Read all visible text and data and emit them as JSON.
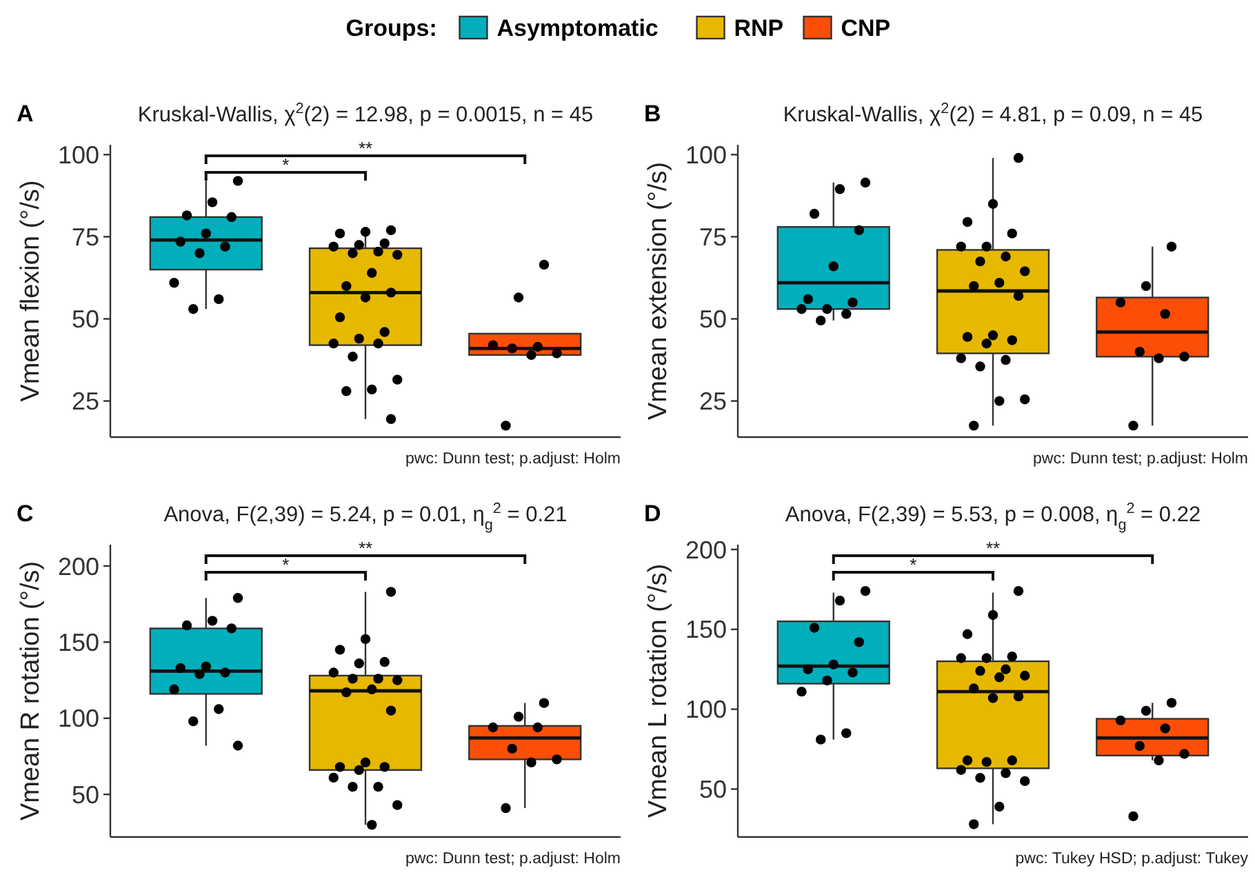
{
  "chart_data": [
    {
      "type": "box",
      "title": "Kruskal-Wallis, χ$^{2}$(2) = 12.98, p = 0.0015, n = 45",
      "ylabel": "Vmean flexion (°/s)",
      "legend": "top",
      "legend_title": "Groups:",
      "categories": [
        null,
        null,
        null
      ],
      "tick_labels": "y",
      "ylim": [
        14,
        103
      ],
      "yticks": [
        25,
        50,
        75,
        100
      ],
      "series": [
        {
          "type": "box",
          "name": "Asymptomatic",
          "color": "#00afbb",
          "boxes": [
            {
              "low": 53,
              "q1": 65,
              "median": 74,
              "q3": 81,
              "high": 92
            },
            null,
            null
          ]
        },
        {
          "type": "box",
          "name": "RNP",
          "color": "#e7b800",
          "boxes": [
            null,
            {
              "low": 19.5,
              "q1": 42,
              "median": 58,
              "q3": 71.5,
              "high": 77
            },
            null
          ]
        },
        {
          "type": "box",
          "name": "CNP",
          "color": "#fc4e07",
          "boxes": [
            null,
            null,
            {
              "low": 39,
              "q1": 39,
              "median": 41,
              "q3": 45.5,
              "high": 45.5
            }
          ]
        },
        {
          "type": "scatter",
          "color": "#000000",
          "values": [
            92,
            77,
            66.5
          ]
        },
        {
          "type": "scatter",
          "color": "#000000",
          "values": [
            85.5,
            76.5,
            56.5
          ]
        },
        {
          "type": "scatter",
          "color": "#000000",
          "values": [
            81.5,
            76,
            42
          ]
        },
        {
          "type": "scatter",
          "color": "#000000",
          "values": [
            81,
            73,
            41.5
          ]
        },
        {
          "type": "scatter",
          "color": "#000000",
          "values": [
            76,
            72.5,
            41
          ]
        },
        {
          "type": "scatter",
          "color": "#000000",
          "values": [
            73.5,
            72,
            39.5
          ]
        },
        {
          "type": "scatter",
          "color": "#000000",
          "values": [
            72,
            70.5,
            39
          ]
        },
        {
          "type": "scatter",
          "color": "#000000",
          "values": [
            70,
            70,
            17.5
          ]
        },
        {
          "type": "scatter",
          "color": "#000000",
          "values": [
            61,
            69.5,
            null
          ]
        },
        {
          "type": "scatter",
          "color": "#000000",
          "values": [
            56,
            64,
            null
          ]
        },
        {
          "type": "scatter",
          "color": "#000000",
          "values": [
            53,
            60,
            null
          ]
        },
        {
          "type": "scatter",
          "color": "#000000",
          "values": [
            null,
            58,
            null
          ]
        },
        {
          "type": "scatter",
          "color": "#000000",
          "values": [
            null,
            56.5,
            null
          ]
        },
        {
          "type": "scatter",
          "color": "#000000",
          "values": [
            null,
            50.5,
            null
          ]
        },
        {
          "type": "scatter",
          "color": "#000000",
          "values": [
            null,
            46,
            null
          ]
        },
        {
          "type": "scatter",
          "color": "#000000",
          "values": [
            null,
            44,
            null
          ]
        },
        {
          "type": "scatter",
          "color": "#000000",
          "values": [
            null,
            42.5,
            null
          ]
        },
        {
          "type": "scatter",
          "color": "#000000",
          "values": [
            null,
            42.5,
            null
          ]
        },
        {
          "type": "scatter",
          "color": "#000000",
          "values": [
            null,
            38.5,
            null
          ]
        },
        {
          "type": "scatter",
          "color": "#000000",
          "values": [
            null,
            31.5,
            null
          ]
        },
        {
          "type": "scatter",
          "color": "#000000",
          "values": [
            null,
            28.5,
            null
          ]
        },
        {
          "type": "scatter",
          "color": "#000000",
          "values": [
            null,
            28,
            null
          ]
        },
        {
          "type": "scatter",
          "color": "#000000",
          "values": [
            null,
            19.5,
            null
          ]
        }
      ],
      "annotations": [
        "A",
        "*",
        "**",
        "pwc: Dunn test; p.adjust: Holm"
      ]
    },
    {
      "type": "box",
      "title": "Kruskal-Wallis, χ$^{2}$(2) = 4.81, p = 0.09, n = 45",
      "ylabel": "Vmean extension (°/s)",
      "categories": [
        null,
        null,
        null
      ],
      "tick_labels": "y",
      "ylim": [
        14,
        103
      ],
      "yticks": [
        25,
        50,
        75,
        100
      ],
      "series": [
        {
          "type": "box",
          "color": "#00afbb",
          "boxes": [
            {
              "low": 49.5,
              "q1": 53,
              "median": 61,
              "q3": 78,
              "high": 91.5
            },
            null,
            null
          ]
        },
        {
          "type": "box",
          "color": "#e7b800",
          "boxes": [
            null,
            {
              "low": 17.5,
              "q1": 39.5,
              "median": 58.5,
              "q3": 71,
              "high": 99
            },
            null
          ]
        },
        {
          "type": "box",
          "color": "#fc4e07",
          "boxes": [
            null,
            null,
            {
              "low": 17.5,
              "q1": 38.5,
              "median": 46,
              "q3": 56.5,
              "high": 72
            }
          ]
        },
        {
          "type": "scatter",
          "color": "#000000",
          "values": [
            91.5,
            99,
            72
          ]
        },
        {
          "type": "scatter",
          "color": "#000000",
          "values": [
            89.5,
            85,
            60
          ]
        },
        {
          "type": "scatter",
          "color": "#000000",
          "values": [
            82,
            79.5,
            55
          ]
        },
        {
          "type": "scatter",
          "color": "#000000",
          "values": [
            77,
            76,
            51.5
          ]
        },
        {
          "type": "scatter",
          "color": "#000000",
          "values": [
            66,
            72,
            40
          ]
        },
        {
          "type": "scatter",
          "color": "#000000",
          "values": [
            56,
            72,
            38.5
          ]
        },
        {
          "type": "scatter",
          "color": "#000000",
          "values": [
            55,
            69,
            38
          ]
        },
        {
          "type": "scatter",
          "color": "#000000",
          "values": [
            53,
            67.5,
            17.5
          ]
        },
        {
          "type": "scatter",
          "color": "#000000",
          "values": [
            53,
            64.5,
            null
          ]
        },
        {
          "type": "scatter",
          "color": "#000000",
          "values": [
            51.5,
            61,
            null
          ]
        },
        {
          "type": "scatter",
          "color": "#000000",
          "values": [
            49.5,
            60,
            null
          ]
        },
        {
          "type": "scatter",
          "color": "#000000",
          "values": [
            null,
            57,
            null
          ]
        },
        {
          "type": "scatter",
          "color": "#000000",
          "values": [
            null,
            45,
            null
          ]
        },
        {
          "type": "scatter",
          "color": "#000000",
          "values": [
            null,
            44.5,
            null
          ]
        },
        {
          "type": "scatter",
          "color": "#000000",
          "values": [
            null,
            43.5,
            null
          ]
        },
        {
          "type": "scatter",
          "color": "#000000",
          "values": [
            null,
            42.5,
            null
          ]
        },
        {
          "type": "scatter",
          "color": "#000000",
          "values": [
            null,
            38,
            null
          ]
        },
        {
          "type": "scatter",
          "color": "#000000",
          "values": [
            null,
            37.5,
            null
          ]
        },
        {
          "type": "scatter",
          "color": "#000000",
          "values": [
            null,
            35.5,
            null
          ]
        },
        {
          "type": "scatter",
          "color": "#000000",
          "values": [
            null,
            25.5,
            null
          ]
        },
        {
          "type": "scatter",
          "color": "#000000",
          "values": [
            null,
            25,
            null
          ]
        },
        {
          "type": "scatter",
          "color": "#000000",
          "values": [
            null,
            17.5,
            null
          ]
        }
      ],
      "annotations": [
        "B",
        "pwc: Dunn test; p.adjust: Holm"
      ]
    },
    {
      "type": "box",
      "title": "Anova, F(2,39) = 5.24, p = 0.01, η$_{g}$$^{2}$ = 0.21",
      "ylabel": "Vmean R rotation (°/s)",
      "categories": [
        null,
        null,
        null
      ],
      "tick_labels": "y",
      "ylim": [
        22,
        214
      ],
      "yticks": [
        50,
        100,
        150,
        200
      ],
      "series": [
        {
          "type": "box",
          "color": "#00afbb",
          "boxes": [
            {
              "low": 82,
              "q1": 116,
              "median": 131,
              "q3": 159,
              "high": 179
            },
            null,
            null
          ]
        },
        {
          "type": "box",
          "color": "#e7b800",
          "boxes": [
            null,
            {
              "low": 30,
              "q1": 66,
              "median": 118,
              "q3": 128,
              "high": 183
            },
            null
          ]
        },
        {
          "type": "box",
          "color": "#fc4e07",
          "boxes": [
            null,
            null,
            {
              "low": 41,
              "q1": 73,
              "median": 87,
              "q3": 95,
              "high": 110
            }
          ]
        },
        {
          "type": "scatter",
          "color": "#000000",
          "values": [
            179,
            183,
            110
          ]
        },
        {
          "type": "scatter",
          "color": "#000000",
          "values": [
            164,
            152,
            101
          ]
        },
        {
          "type": "scatter",
          "color": "#000000",
          "values": [
            161,
            145,
            94
          ]
        },
        {
          "type": "scatter",
          "color": "#000000",
          "values": [
            159,
            137,
            94
          ]
        },
        {
          "type": "scatter",
          "color": "#000000",
          "values": [
            134,
            136,
            80
          ]
        },
        {
          "type": "scatter",
          "color": "#000000",
          "values": [
            133,
            130,
            73
          ]
        },
        {
          "type": "scatter",
          "color": "#000000",
          "values": [
            130,
            126,
            71
          ]
        },
        {
          "type": "scatter",
          "color": "#000000",
          "values": [
            129,
            126,
            41
          ]
        },
        {
          "type": "scatter",
          "color": "#000000",
          "values": [
            119,
            125,
            null
          ]
        },
        {
          "type": "scatter",
          "color": "#000000",
          "values": [
            106,
            119,
            null
          ]
        },
        {
          "type": "scatter",
          "color": "#000000",
          "values": [
            98,
            117,
            null
          ]
        },
        {
          "type": "scatter",
          "color": "#000000",
          "values": [
            82,
            105,
            null
          ]
        },
        {
          "type": "scatter",
          "color": "#000000",
          "values": [
            null,
            71,
            null
          ]
        },
        {
          "type": "scatter",
          "color": "#000000",
          "values": [
            null,
            68,
            null
          ]
        },
        {
          "type": "scatter",
          "color": "#000000",
          "values": [
            null,
            68,
            null
          ]
        },
        {
          "type": "scatter",
          "color": "#000000",
          "values": [
            null,
            66,
            null
          ]
        },
        {
          "type": "scatter",
          "color": "#000000",
          "values": [
            null,
            61,
            null
          ]
        },
        {
          "type": "scatter",
          "color": "#000000",
          "values": [
            null,
            55,
            null
          ]
        },
        {
          "type": "scatter",
          "color": "#000000",
          "values": [
            null,
            55,
            null
          ]
        },
        {
          "type": "scatter",
          "color": "#000000",
          "values": [
            null,
            43,
            null
          ]
        },
        {
          "type": "scatter",
          "color": "#000000",
          "values": [
            null,
            30,
            null
          ]
        }
      ],
      "annotations": [
        "C",
        "*",
        "**",
        "pwc: Dunn test; p.adjust: Holm"
      ]
    },
    {
      "type": "box",
      "title": "Anova, F(2,39) = 5.53, p = 0.008, η$_{g}$$^{2}$ = 0.22",
      "ylabel": "Vmean L rotation (°/s)",
      "categories": [
        null,
        null,
        null
      ],
      "tick_labels": "y",
      "ylim": [
        20,
        203
      ],
      "yticks": [
        50,
        100,
        150,
        200
      ],
      "series": [
        {
          "type": "box",
          "color": "#00afbb",
          "boxes": [
            {
              "low": 81,
              "q1": 116,
              "median": 127,
              "q3": 155,
              "high": 173
            },
            null,
            null
          ]
        },
        {
          "type": "box",
          "color": "#e7b800",
          "boxes": [
            null,
            {
              "low": 28,
              "q1": 63,
              "median": 111,
              "q3": 130,
              "high": 173
            },
            null
          ]
        },
        {
          "type": "box",
          "color": "#fc4e07",
          "boxes": [
            null,
            null,
            {
              "low": 68,
              "q1": 71,
              "median": 82,
              "q3": 94,
              "high": 104
            }
          ]
        },
        {
          "type": "scatter",
          "color": "#000000",
          "values": [
            174,
            174,
            104
          ]
        },
        {
          "type": "scatter",
          "color": "#000000",
          "values": [
            168,
            159,
            99
          ]
        },
        {
          "type": "scatter",
          "color": "#000000",
          "values": [
            151,
            147,
            93
          ]
        },
        {
          "type": "scatter",
          "color": "#000000",
          "values": [
            142,
            133,
            88
          ]
        },
        {
          "type": "scatter",
          "color": "#000000",
          "values": [
            128,
            132,
            77
          ]
        },
        {
          "type": "scatter",
          "color": "#000000",
          "values": [
            125,
            132,
            72
          ]
        },
        {
          "type": "scatter",
          "color": "#000000",
          "values": [
            123,
            125,
            68
          ]
        },
        {
          "type": "scatter",
          "color": "#000000",
          "values": [
            118,
            124,
            33
          ]
        },
        {
          "type": "scatter",
          "color": "#000000",
          "values": [
            111,
            121,
            null
          ]
        },
        {
          "type": "scatter",
          "color": "#000000",
          "values": [
            85,
            120,
            null
          ]
        },
        {
          "type": "scatter",
          "color": "#000000",
          "values": [
            81,
            113,
            null
          ]
        },
        {
          "type": "scatter",
          "color": "#000000",
          "values": [
            null,
            108,
            null
          ]
        },
        {
          "type": "scatter",
          "color": "#000000",
          "values": [
            null,
            107,
            null
          ]
        },
        {
          "type": "scatter",
          "color": "#000000",
          "values": [
            null,
            68,
            null
          ]
        },
        {
          "type": "scatter",
          "color": "#000000",
          "values": [
            null,
            68,
            null
          ]
        },
        {
          "type": "scatter",
          "color": "#000000",
          "values": [
            null,
            67,
            null
          ]
        },
        {
          "type": "scatter",
          "color": "#000000",
          "values": [
            null,
            62,
            null
          ]
        },
        {
          "type": "scatter",
          "color": "#000000",
          "values": [
            null,
            60,
            null
          ]
        },
        {
          "type": "scatter",
          "color": "#000000",
          "values": [
            null,
            57,
            null
          ]
        },
        {
          "type": "scatter",
          "color": "#000000",
          "values": [
            null,
            55,
            null
          ]
        },
        {
          "type": "scatter",
          "color": "#000000",
          "values": [
            null,
            39,
            null
          ]
        },
        {
          "type": "scatter",
          "color": "#000000",
          "values": [
            null,
            28,
            null
          ]
        }
      ],
      "annotations": [
        "D",
        "*",
        "**",
        "pwc: Tukey HSD; p.adjust: Tukey"
      ]
    }
  ]
}
